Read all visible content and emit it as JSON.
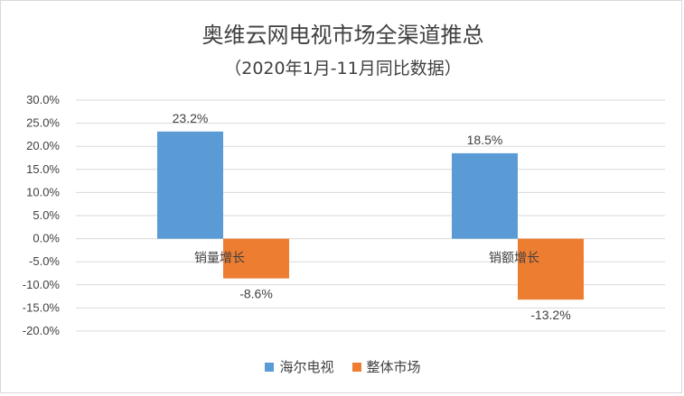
{
  "chart_data": {
    "type": "bar",
    "title": "奥维云网电视市场全渠道推总",
    "subtitle": "（2020年1月-11月同比数据）",
    "categories": [
      "销量增长",
      "销额增长"
    ],
    "series": [
      {
        "name": "海尔电视",
        "values": [
          23.2,
          18.5
        ],
        "labels": [
          "23.2%",
          "18.5%"
        ],
        "color": "#5b9bd5"
      },
      {
        "name": "整体市场",
        "values": [
          -8.6,
          -13.2
        ],
        "labels": [
          "-8.6%",
          "-13.2%"
        ],
        "color": "#ed7d31"
      }
    ],
    "ylim": [
      -20,
      30
    ],
    "yticks": [
      "30.0%",
      "25.0%",
      "20.0%",
      "15.0%",
      "10.0%",
      "5.0%",
      "0.0%",
      "-5.0%",
      "-10.0%",
      "-15.0%",
      "-20.0%"
    ],
    "ytick_values": [
      30,
      25,
      20,
      15,
      10,
      5,
      0,
      -5,
      -10,
      -15,
      -20
    ],
    "grid": true,
    "gridline_color": "#d9d9d9",
    "legend_position": "bottom"
  }
}
